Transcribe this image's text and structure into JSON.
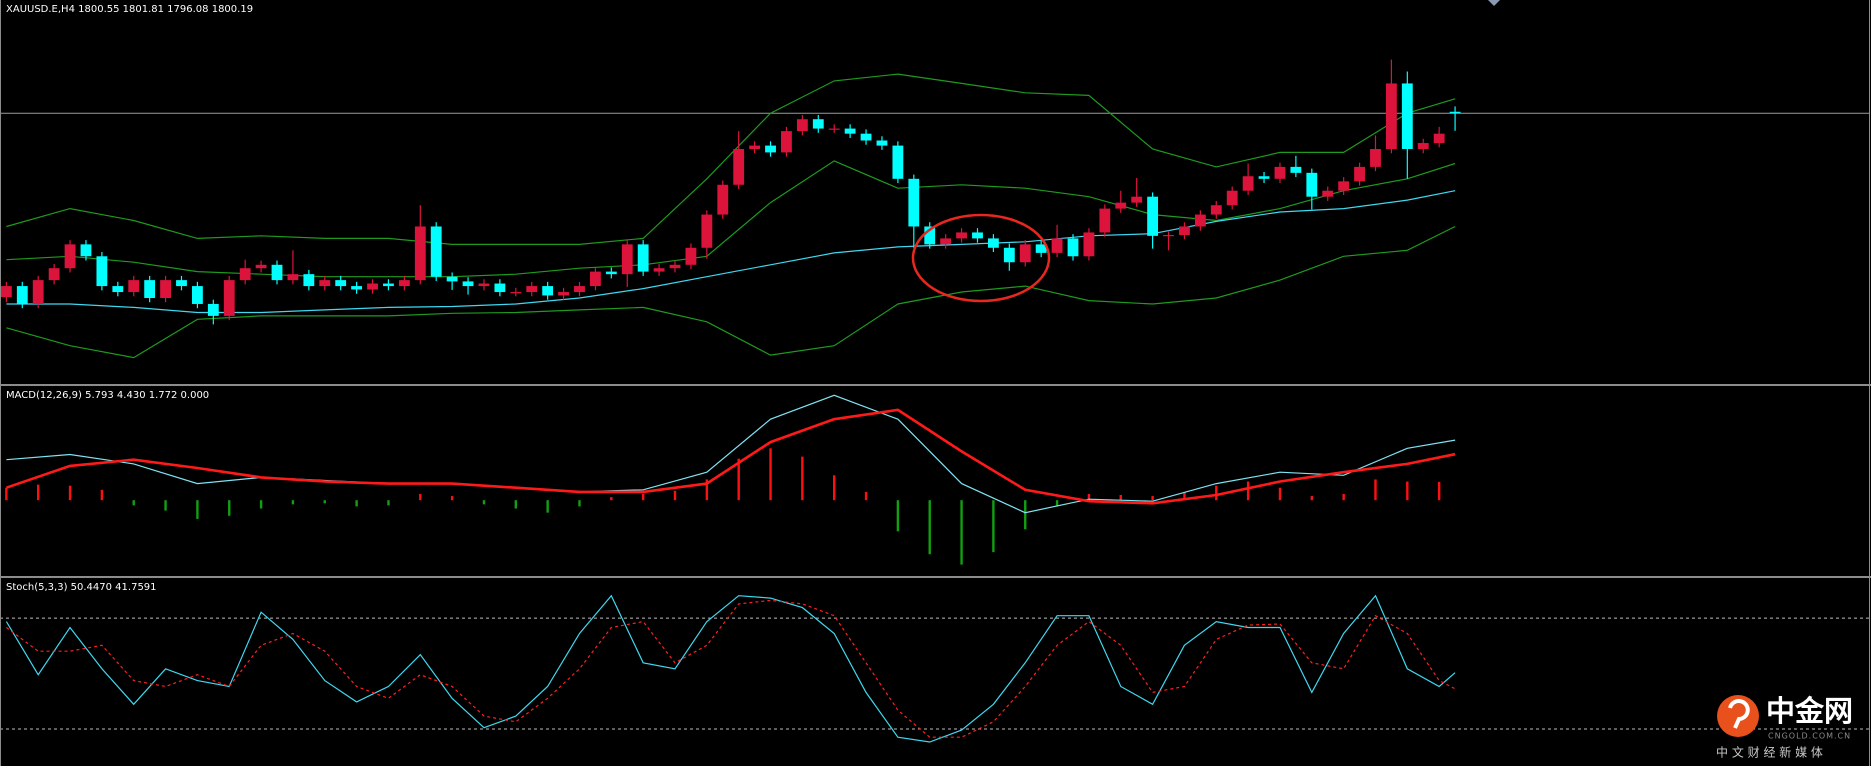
{
  "chart_data": [
    {
      "type": "candlestick",
      "title": "XAUUSD.E,H4 1800.55 1801.81 1796.08 1800.19",
      "up_color": "#dc143c",
      "down_color": "#00ffff",
      "bid_line_color": "#9a9a9a",
      "xlim": [
        -0.4,
        117
      ],
      "ylim": [
        1736.6,
        1826.8
      ],
      "ohlc": [
        [
          1757.0,
          1760.6,
          1755.8,
          1759.6
        ],
        [
          1759.6,
          1760.6,
          1754.4,
          1755.4
        ],
        [
          1755.4,
          1762.0,
          1754.4,
          1761.0
        ],
        [
          1761.0,
          1764.8,
          1760.0,
          1763.8
        ],
        [
          1763.8,
          1770.4,
          1762.8,
          1769.4
        ],
        [
          1769.4,
          1770.4,
          1765.6,
          1766.6
        ],
        [
          1766.6,
          1767.6,
          1758.6,
          1759.6
        ],
        [
          1759.6,
          1760.6,
          1757.2,
          1758.2
        ],
        [
          1758.2,
          1762.0,
          1757.2,
          1761.0
        ],
        [
          1761.0,
          1762.0,
          1755.8,
          1756.8
        ],
        [
          1756.8,
          1762.0,
          1755.8,
          1761.0
        ],
        [
          1761.0,
          1762.0,
          1758.6,
          1759.6
        ],
        [
          1759.6,
          1760.6,
          1754.4,
          1755.4
        ],
        [
          1755.4,
          1756.4,
          1750.6,
          1752.6
        ],
        [
          1752.6,
          1762.0,
          1751.6,
          1761.0
        ],
        [
          1761.0,
          1765.8,
          1760.0,
          1763.8
        ],
        [
          1763.8,
          1765.6,
          1762.8,
          1764.6
        ],
        [
          1764.6,
          1765.6,
          1760.0,
          1761.0
        ],
        [
          1761.0,
          1768.0,
          1760.0,
          1762.4
        ],
        [
          1762.4,
          1763.4,
          1758.6,
          1759.6
        ],
        [
          1759.6,
          1762.0,
          1758.6,
          1761.0
        ],
        [
          1761.0,
          1762.0,
          1758.6,
          1759.6
        ],
        [
          1759.6,
          1760.6,
          1757.8,
          1758.8
        ],
        [
          1758.8,
          1761.2,
          1757.8,
          1760.2
        ],
        [
          1760.2,
          1761.2,
          1758.6,
          1759.6
        ],
        [
          1759.6,
          1762.0,
          1758.6,
          1761.0
        ],
        [
          1761.0,
          1778.6,
          1760.0,
          1773.6
        ],
        [
          1773.6,
          1774.6,
          1760.8,
          1761.8
        ],
        [
          1761.8,
          1762.8,
          1758.7,
          1760.7
        ],
        [
          1760.7,
          1761.7,
          1757.6,
          1759.6
        ],
        [
          1759.6,
          1761.2,
          1758.6,
          1760.2
        ],
        [
          1760.2,
          1761.2,
          1757.2,
          1758.2
        ],
        [
          1758.2,
          1759.2,
          1757.2,
          1758.2
        ],
        [
          1758.2,
          1760.6,
          1757.2,
          1759.6
        ],
        [
          1759.6,
          1760.6,
          1756.4,
          1757.4
        ],
        [
          1757.4,
          1759.2,
          1756.4,
          1758.2
        ],
        [
          1758.2,
          1760.6,
          1757.2,
          1759.6
        ],
        [
          1759.6,
          1764.0,
          1758.6,
          1763.0
        ],
        [
          1763.0,
          1764.0,
          1761.4,
          1762.4
        ],
        [
          1762.4,
          1770.4,
          1759.4,
          1769.4
        ],
        [
          1769.4,
          1770.4,
          1762.0,
          1763.0
        ],
        [
          1763.0,
          1764.8,
          1762.0,
          1763.8
        ],
        [
          1763.8,
          1765.6,
          1762.8,
          1764.6
        ],
        [
          1764.6,
          1769.6,
          1763.6,
          1768.6
        ],
        [
          1768.6,
          1777.4,
          1766.0,
          1776.4
        ],
        [
          1776.4,
          1784.4,
          1775.4,
          1783.4
        ],
        [
          1783.4,
          1796.0,
          1782.4,
          1791.8
        ],
        [
          1791.8,
          1793.6,
          1790.8,
          1792.6
        ],
        [
          1792.6,
          1793.6,
          1790.0,
          1791.0
        ],
        [
          1791.0,
          1797.0,
          1790.0,
          1796.0
        ],
        [
          1796.0,
          1799.8,
          1795.0,
          1798.8
        ],
        [
          1798.8,
          1799.8,
          1795.6,
          1796.6
        ],
        [
          1796.6,
          1797.6,
          1795.6,
          1796.6
        ],
        [
          1796.6,
          1797.6,
          1794.4,
          1795.4
        ],
        [
          1795.4,
          1796.4,
          1792.8,
          1793.8
        ],
        [
          1793.8,
          1794.8,
          1791.6,
          1792.6
        ],
        [
          1792.6,
          1793.6,
          1783.8,
          1784.8
        ],
        [
          1784.8,
          1785.8,
          1768.6,
          1773.6
        ],
        [
          1773.6,
          1774.6,
          1768.4,
          1769.4
        ],
        [
          1769.4,
          1771.8,
          1768.4,
          1770.8
        ],
        [
          1770.8,
          1773.2,
          1769.8,
          1772.2
        ],
        [
          1772.2,
          1773.2,
          1769.8,
          1770.8
        ],
        [
          1770.8,
          1771.8,
          1767.6,
          1768.6
        ],
        [
          1768.6,
          1769.6,
          1763.2,
          1765.2
        ],
        [
          1765.2,
          1770.4,
          1764.2,
          1769.4
        ],
        [
          1769.4,
          1770.4,
          1766.4,
          1767.4
        ],
        [
          1767.4,
          1774.0,
          1766.4,
          1770.8
        ],
        [
          1770.8,
          1771.8,
          1765.6,
          1766.6
        ],
        [
          1766.6,
          1773.2,
          1765.6,
          1772.2
        ],
        [
          1772.2,
          1778.8,
          1771.2,
          1777.8
        ],
        [
          1777.8,
          1782.0,
          1776.8,
          1779.2
        ],
        [
          1779.2,
          1785.0,
          1778.2,
          1780.6
        ],
        [
          1780.6,
          1781.6,
          1768.4,
          1771.4
        ],
        [
          1771.4,
          1772.6,
          1768.0,
          1771.6
        ],
        [
          1771.6,
          1774.6,
          1770.6,
          1773.6
        ],
        [
          1773.6,
          1777.4,
          1772.6,
          1776.4
        ],
        [
          1776.4,
          1779.6,
          1775.4,
          1778.6
        ],
        [
          1778.6,
          1783.0,
          1777.6,
          1782.0
        ],
        [
          1782.0,
          1788.4,
          1781.0,
          1785.4
        ],
        [
          1785.4,
          1786.4,
          1783.8,
          1784.8
        ],
        [
          1784.8,
          1788.6,
          1783.8,
          1787.6
        ],
        [
          1787.6,
          1790.2,
          1785.2,
          1786.2
        ],
        [
          1786.2,
          1787.2,
          1777.6,
          1780.6
        ],
        [
          1780.6,
          1783.0,
          1779.6,
          1782.0
        ],
        [
          1782.0,
          1785.2,
          1781.0,
          1784.2
        ],
        [
          1784.2,
          1788.6,
          1783.2,
          1787.6
        ],
        [
          1787.6,
          1795.0,
          1786.6,
          1791.8
        ],
        [
          1791.8,
          1812.8,
          1790.8,
          1807.2
        ],
        [
          1807.2,
          1810.0,
          1784.8,
          1791.8
        ],
        [
          1791.8,
          1794.2,
          1790.8,
          1793.2
        ],
        [
          1793.2,
          1797.0,
          1792.2,
          1795.4
        ],
        [
          1800.55,
          1801.81,
          1796.08,
          1800.19
        ]
      ],
      "x": [
        0,
        4,
        8,
        12,
        16,
        20,
        24,
        28,
        32,
        36,
        40,
        44,
        48,
        52,
        56,
        60,
        64,
        68,
        72,
        76,
        80,
        84,
        88,
        91
      ],
      "series": [
        {
          "color": "#1f9a1f",
          "values": [
            1773.6,
            1777.8,
            1775.0,
            1770.8,
            1771.4,
            1770.8,
            1770.8,
            1769.4,
            1769.4,
            1769.4,
            1770.8,
            1784.8,
            1800.2,
            1807.8,
            1809.4,
            1807.2,
            1805.0,
            1804.4,
            1791.8,
            1787.6,
            1791.0,
            1791.0,
            1800.2,
            1803.6
          ]
        },
        {
          "color": "#1f9a1f",
          "values": [
            1765.8,
            1766.6,
            1765.2,
            1763.0,
            1762.4,
            1761.8,
            1761.8,
            1761.8,
            1762.4,
            1763.8,
            1764.6,
            1766.6,
            1779.2,
            1789.0,
            1782.6,
            1783.4,
            1782.6,
            1780.6,
            1776.4,
            1775.0,
            1777.8,
            1782.0,
            1784.8,
            1788.4
          ]
        },
        {
          "color": "#1f9a1f",
          "values": [
            1749.8,
            1745.6,
            1742.8,
            1751.8,
            1752.6,
            1752.6,
            1752.6,
            1753.2,
            1753.4,
            1754.0,
            1754.6,
            1751.2,
            1743.4,
            1745.6,
            1755.4,
            1758.2,
            1759.6,
            1756.2,
            1755.4,
            1756.8,
            1761.0,
            1766.6,
            1768.0,
            1773.6
          ]
        },
        {
          "color": "#3fd8f0",
          "values": [
            1755.4,
            1755.4,
            1754.6,
            1753.4,
            1753.4,
            1754.0,
            1754.6,
            1754.8,
            1755.4,
            1756.8,
            1759.0,
            1761.8,
            1764.6,
            1767.4,
            1768.8,
            1769.4,
            1770.0,
            1771.4,
            1771.9,
            1774.8,
            1777.0,
            1777.8,
            1779.8,
            1782.0
          ]
        }
      ]
    },
    {
      "type": "macd",
      "title": "MACD(12,26,9) 5.793 4.430 1.772 0.000",
      "xlim": [
        -0.4,
        117
      ],
      "ylim": [
        -7.3,
        11.0
      ],
      "x": [
        0,
        4,
        8,
        12,
        16,
        20,
        24,
        28,
        32,
        36,
        40,
        44,
        48,
        52,
        56,
        60,
        64,
        68,
        72,
        76,
        80,
        84,
        88,
        91
      ],
      "series": [
        {
          "color": "#7fe3f2",
          "values": [
            3.9,
            4.4,
            3.5,
            1.6,
            2.2,
            1.9,
            1.6,
            1.6,
            1.2,
            0.8,
            1.0,
            2.7,
            7.8,
            10.1,
            7.8,
            1.6,
            -1.2,
            0.1,
            -0.1,
            1.6,
            2.7,
            2.4,
            5.0,
            5.793
          ]
        },
        {
          "color": "#ff1a1a",
          "values": [
            1.2,
            3.3,
            3.9,
            3.1,
            2.2,
            1.8,
            1.6,
            1.6,
            1.2,
            0.8,
            0.8,
            1.6,
            5.6,
            7.8,
            8.7,
            4.7,
            1.0,
            -0.1,
            -0.3,
            0.5,
            1.8,
            2.7,
            3.5,
            4.43
          ]
        }
      ],
      "histogram": {
        "up_color": "#ff1010",
        "down_color": "#12a012",
        "x": [
          0,
          2,
          4,
          6,
          8,
          10,
          12,
          14,
          16,
          18,
          20,
          22,
          24,
          26,
          28,
          30,
          32,
          34,
          36,
          38,
          40,
          42,
          44,
          46,
          48,
          50,
          52,
          54,
          56,
          58,
          60,
          62,
          64,
          66,
          68,
          70,
          72,
          74,
          76,
          78,
          80,
          82,
          84,
          86,
          88,
          90
        ],
        "values": [
          1.2,
          1.5,
          1.4,
          1.0,
          -0.5,
          -1.0,
          -1.8,
          -1.5,
          -0.8,
          -0.4,
          -0.3,
          -0.6,
          -0.5,
          0.6,
          0.4,
          -0.4,
          -0.8,
          -1.2,
          -0.6,
          0.3,
          0.6,
          0.9,
          2.0,
          4.0,
          5.0,
          4.2,
          2.4,
          0.8,
          -3.0,
          -5.2,
          -6.2,
          -5.0,
          -2.8,
          -0.6,
          0.6,
          0.5,
          0.4,
          0.8,
          1.4,
          1.8,
          1.2,
          0.4,
          0.6,
          2.0,
          1.8,
          1.772
        ]
      }
    },
    {
      "type": "stochastic",
      "title": "Stoch(5,3,3) 50.4470 41.7591",
      "xlim": [
        -0.4,
        117
      ],
      "ylim": [
        0,
        101.7
      ],
      "levels": [
        80,
        20
      ],
      "level_color": "#bdbdbd",
      "x": [
        0,
        2,
        4,
        6,
        8,
        10,
        12,
        14,
        16,
        18,
        20,
        22,
        24,
        26,
        28,
        30,
        32,
        34,
        36,
        38,
        40,
        42,
        44,
        46,
        48,
        50,
        52,
        54,
        56,
        58,
        60,
        62,
        64,
        66,
        68,
        70,
        72,
        74,
        76,
        78,
        80,
        82,
        84,
        86,
        88,
        90,
        91
      ],
      "series": [
        {
          "color": "#3fd8f0",
          "values": [
            78.1,
            49.4,
            74.9,
            52.6,
            33.4,
            52.6,
            46.2,
            43.0,
            83.2,
            68.5,
            46.2,
            34.7,
            43.0,
            60.2,
            36.6,
            20.7,
            27.0,
            43.0,
            71.7,
            92.1,
            55.8,
            52.6,
            78.1,
            92.1,
            90.8,
            85.7,
            71.7,
            39.8,
            15.6,
            13.0,
            19.4,
            33.4,
            55.8,
            81.3,
            81.3,
            43.0,
            33.4,
            65.3,
            78.1,
            74.9,
            74.9,
            39.8,
            71.7,
            92.1,
            52.6,
            43.0,
            50.447
          ]
        },
        {
          "color": "#ff2020",
          "dashed": true,
          "values": [
            74.9,
            62.1,
            62.1,
            65.3,
            46.2,
            43.0,
            49.4,
            43.0,
            65.3,
            71.7,
            62.1,
            43.0,
            36.6,
            49.4,
            43.0,
            27.0,
            23.9,
            36.6,
            52.6,
            74.9,
            78.1,
            55.8,
            65.3,
            87.7,
            89.6,
            87.7,
            81.3,
            55.8,
            30.2,
            15.6,
            15.6,
            23.9,
            43.0,
            65.3,
            78.1,
            65.3,
            39.8,
            43.0,
            68.5,
            76.2,
            76.8,
            55.8,
            52.6,
            81.3,
            71.7,
            46.2,
            41.7591
          ]
        }
      ]
    }
  ],
  "watermark": {
    "name": "中金网",
    "domain": "CNGOLD.COM.CN",
    "slogan": "中 文 财 经 新 媒 体"
  }
}
